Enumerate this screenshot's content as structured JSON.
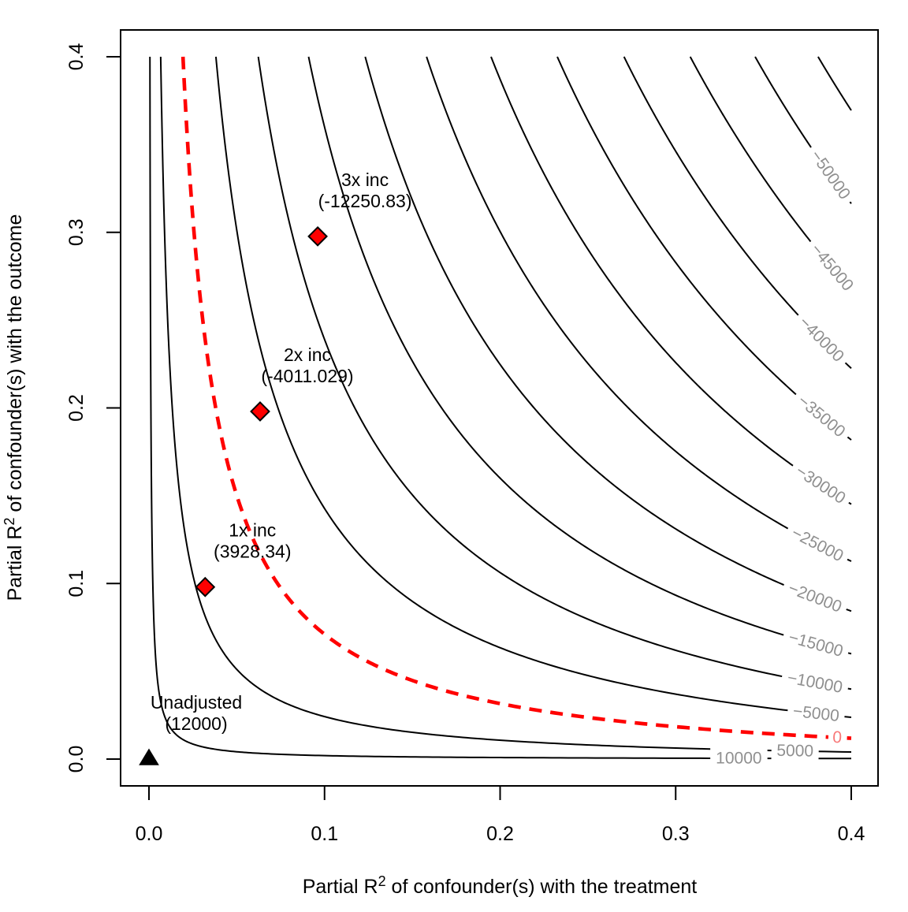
{
  "chart_data": {
    "type": "contour",
    "title": "",
    "background": "#ffffff",
    "x_axis": {
      "label_prefix": "Partial R",
      "label_sup": "2",
      "label_suffix": " of confounder(s) with the treatment",
      "ticks": [
        {
          "value": 0.0,
          "label": "0.0"
        },
        {
          "value": 0.1,
          "label": "0.1"
        },
        {
          "value": 0.2,
          "label": "0.2"
        },
        {
          "value": 0.3,
          "label": "0.3"
        },
        {
          "value": 0.4,
          "label": "0.4"
        }
      ],
      "range": [
        0,
        0.4
      ]
    },
    "y_axis": {
      "label_prefix": "Partial R",
      "label_sup": "2",
      "label_suffix": " of confounder(s) with the outcome",
      "ticks": [
        {
          "value": 0.0,
          "label": "0.0"
        },
        {
          "value": 0.1,
          "label": "0.1"
        },
        {
          "value": 0.2,
          "label": "0.2"
        },
        {
          "value": 0.3,
          "label": "0.3"
        },
        {
          "value": 0.4,
          "label": "0.4"
        }
      ],
      "range": [
        0,
        0.4
      ]
    },
    "model": {
      "unadjusted_estimate": 12000,
      "bias_scale_k": 135000,
      "formula": "adjusted_estimate = 12000 - k*sqrt(x*y/(1-x))"
    },
    "contours": {
      "line_color": "#000000",
      "label_color": "#8f8f8f",
      "zero_line_color": "#ff0000",
      "zero_label_color": "#f87878",
      "zero_dashed": true,
      "levels": [
        {
          "value": 10000,
          "label": "10000",
          "label_x": 0.336
        },
        {
          "value": 5000,
          "label": "5000",
          "label_x": 0.368
        },
        {
          "value": 0,
          "label": "0",
          "label_x": 0.392
        },
        {
          "value": -5000,
          "label": "−5000",
          "label_x": 0.38
        },
        {
          "value": -10000,
          "label": "−10000",
          "label_x": 0.3793
        },
        {
          "value": -15000,
          "label": "−15000",
          "label_x": 0.3798
        },
        {
          "value": -20000,
          "label": "−20000",
          "label_x": 0.3793
        },
        {
          "value": -25000,
          "label": "−25000",
          "label_x": 0.3807
        },
        {
          "value": -30000,
          "label": "−30000",
          "label_x": 0.3825
        },
        {
          "value": -35000,
          "label": "−35000",
          "label_x": 0.383
        },
        {
          "value": -40000,
          "label": "−40000",
          "label_x": 0.383
        },
        {
          "value": -45000,
          "label": "−45000",
          "label_x": 0.389
        },
        {
          "value": -50000,
          "label": "−50000",
          "label_x": 0.388
        },
        {
          "value": -55000,
          "label": null,
          "label_x": null
        }
      ]
    },
    "points": [
      {
        "id": "unadjusted",
        "marker": "triangle",
        "fill": "#000000",
        "stroke": "#000000",
        "x": 0.0,
        "y": 0.0,
        "label_line1": "Unadjusted",
        "label_line2": "(12000)",
        "estimate": 12000
      },
      {
        "id": "1x-inc",
        "marker": "diamond",
        "fill": "#ff0000",
        "stroke": "#000000",
        "x": 0.032,
        "y": 0.098,
        "label_line1": "1x inc",
        "label_line2": "(3928.34)",
        "estimate": 3928.34
      },
      {
        "id": "2x-inc",
        "marker": "diamond",
        "fill": "#ff0000",
        "stroke": "#000000",
        "x": 0.0633,
        "y": 0.198,
        "label_line1": "2x inc",
        "label_line2": "(-4011.029)",
        "estimate": -4011.029
      },
      {
        "id": "3x-inc",
        "marker": "diamond",
        "fill": "#ff0000",
        "stroke": "#000000",
        "x": 0.0961,
        "y": 0.2977,
        "label_line1": "3x inc",
        "label_line2": "(-12250.83)",
        "estimate": -12250.83
      }
    ]
  },
  "layout_note": "R base-graphics style sensitivity contour plot"
}
